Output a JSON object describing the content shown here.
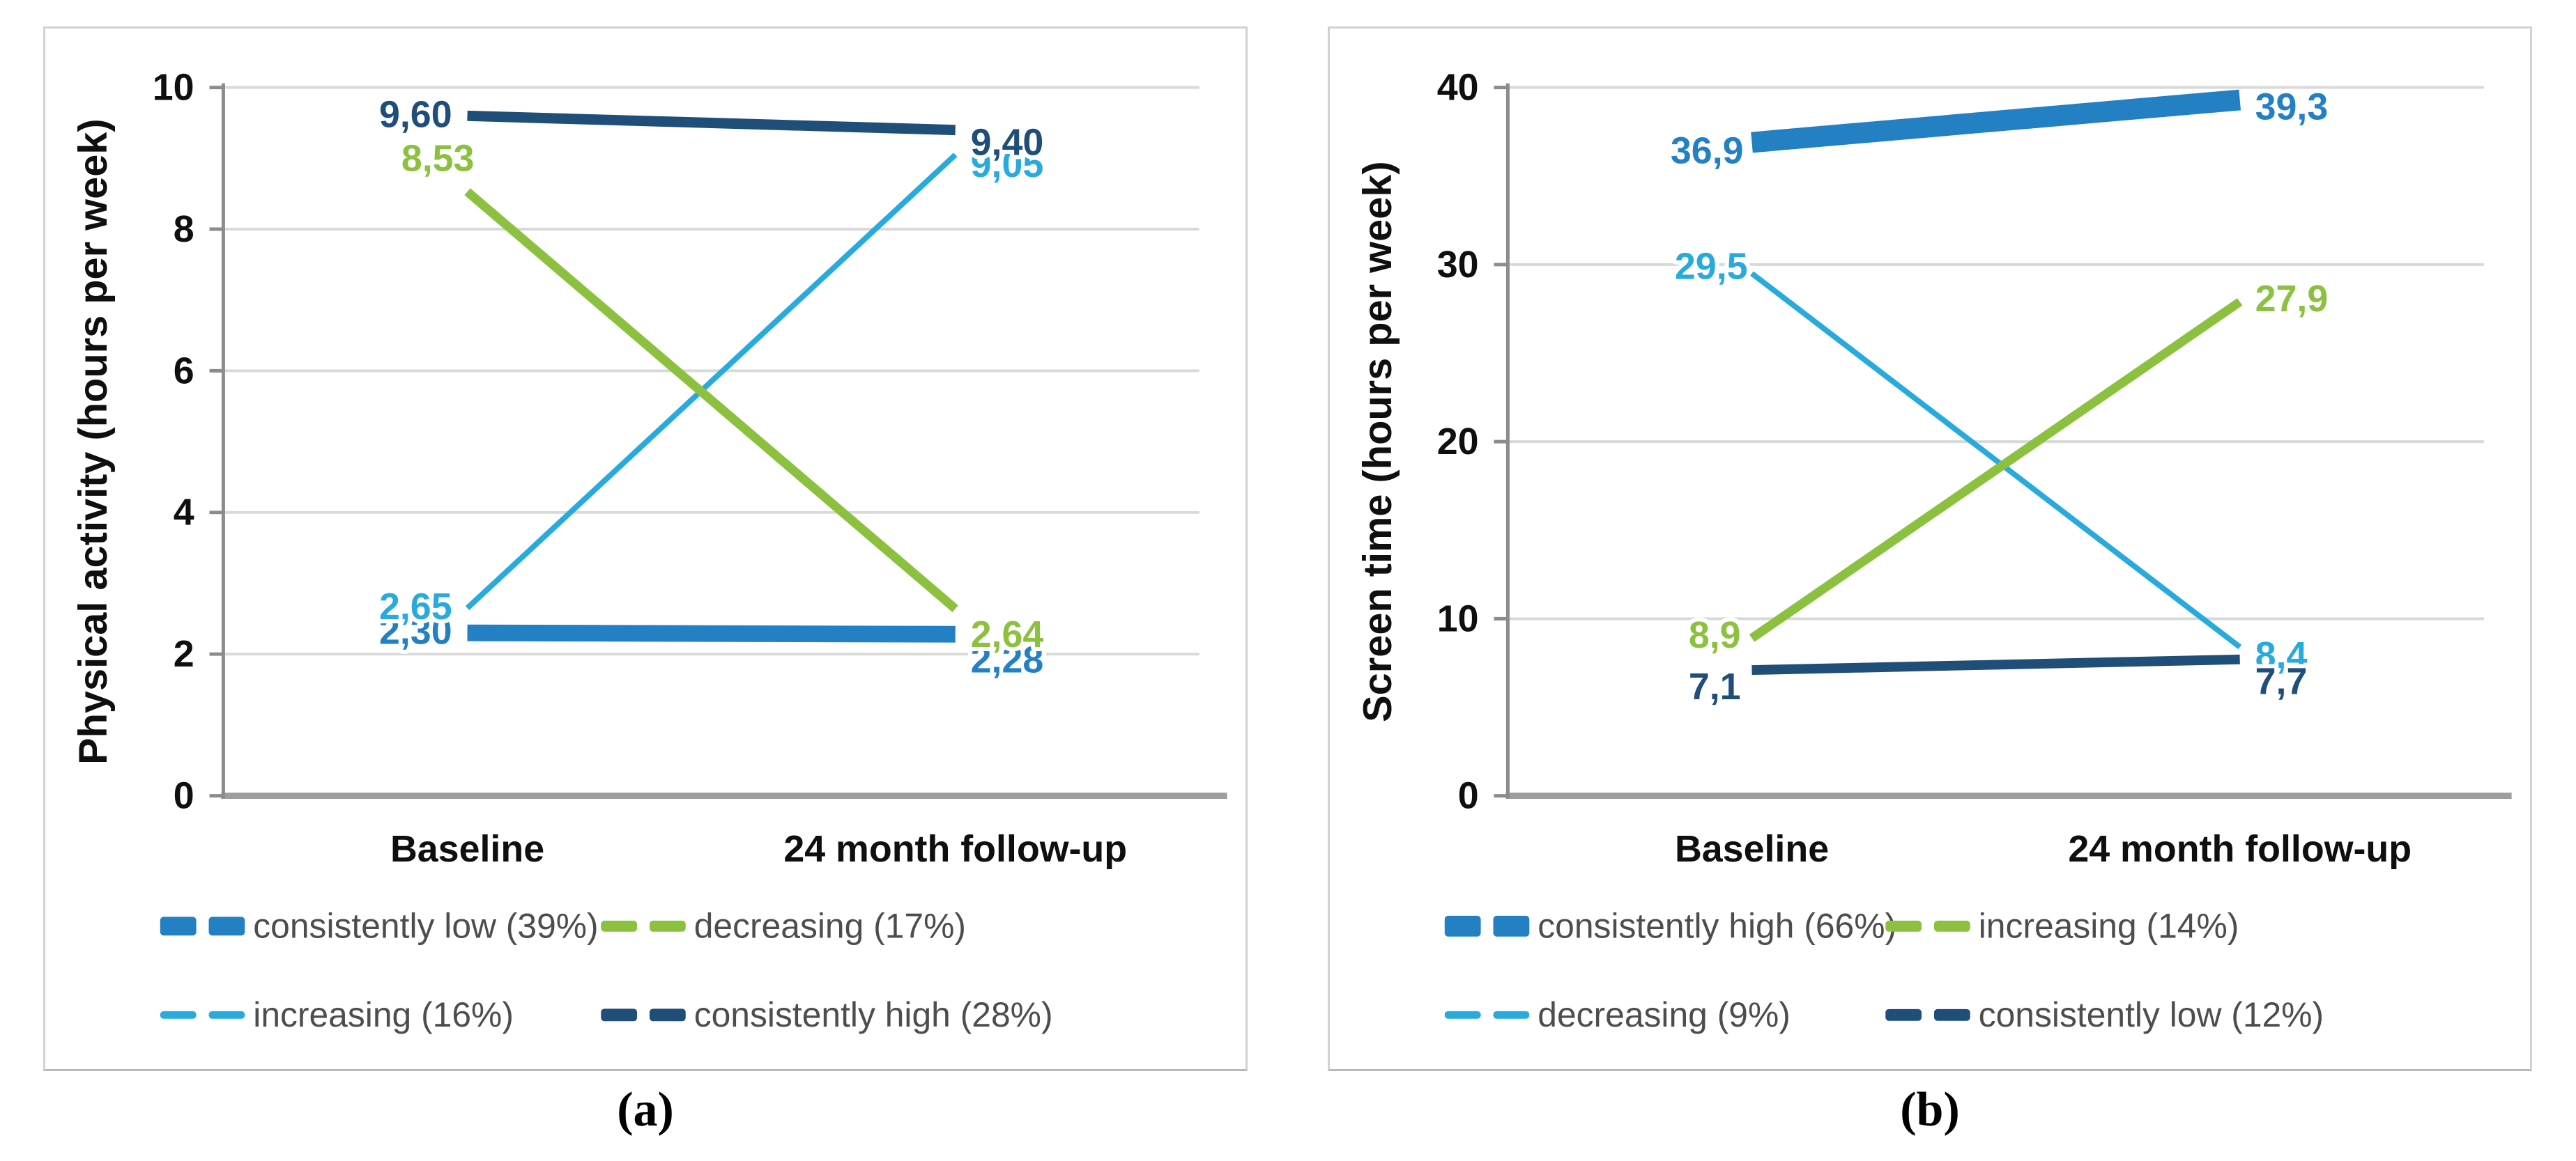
{
  "figure": {
    "panels": [
      {
        "caption": "(a)"
      },
      {
        "caption": "(b)"
      }
    ]
  },
  "colors": {
    "blue": "#2280c3",
    "green": "#8cc140",
    "cyan": "#28aadc",
    "navy": "#1f4e79",
    "gridline": "#d9d9d9",
    "axis": "#8c8c8c",
    "axis_bottom": "#9e9e9e",
    "tick_text": "#0f0f0f",
    "legend_text": "#4d4d4d",
    "panel_border": "#d2d2d2"
  },
  "chart_data": [
    {
      "type": "line",
      "title": "",
      "xlabel": "",
      "ylabel": "Physical activity (hours per week)",
      "ylim": [
        0,
        10
      ],
      "yticks": [
        0,
        2,
        4,
        6,
        8,
        10
      ],
      "categories": [
        "Baseline",
        "24 month follow-up"
      ],
      "grid": true,
      "legend_position": "bottom",
      "legend_columns": 2,
      "draw_order": [
        0,
        2,
        1,
        3
      ],
      "series": [
        {
          "name": "consistently low (39%)",
          "color_key": "blue",
          "stroke_width": 24,
          "values": [
            2.3,
            2.28
          ],
          "point_labels": [
            "2,30",
            "2,28"
          ],
          "label_pos": {
            "start": {
              "anchor": "end",
              "dx": -22,
              "dy": 16
            },
            "end": {
              "anchor": "start",
              "dx": 22,
              "dy": 55
            }
          }
        },
        {
          "name": "decreasing (17%)",
          "color_key": "green",
          "stroke_width": 13,
          "values": [
            8.53,
            2.64
          ],
          "point_labels": [
            "8,53",
            "2,64"
          ],
          "label_pos": {
            "start": {
              "anchor": "end",
              "dx": 10,
              "dy": -30
            },
            "end": {
              "anchor": "start",
              "dx": 22,
              "dy": 55
            }
          }
        },
        {
          "name": "increasing (16%)",
          "color_key": "cyan",
          "stroke_width": 8,
          "values": [
            2.65,
            9.05
          ],
          "point_labels": [
            "2,65",
            "9,05"
          ],
          "label_pos": {
            "start": {
              "anchor": "end",
              "dx": -22,
              "dy": 16
            },
            "end": {
              "anchor": "start",
              "dx": 22,
              "dy": 32
            }
          }
        },
        {
          "name": "consistently high (28%)",
          "color_key": "navy",
          "stroke_width": 15,
          "values": [
            9.6,
            9.4
          ],
          "point_labels": [
            "9,60",
            "9,40"
          ],
          "label_pos": {
            "start": {
              "anchor": "end",
              "dx": -22,
              "dy": 16
            },
            "end": {
              "anchor": "start",
              "dx": 22,
              "dy": 36
            }
          }
        }
      ]
    },
    {
      "type": "line",
      "title": "",
      "xlabel": "",
      "ylabel": "Screen time (hours per week)",
      "ylim": [
        0,
        40
      ],
      "yticks": [
        0,
        10,
        20,
        30,
        40
      ],
      "categories": [
        "Baseline",
        "24 month follow-up"
      ],
      "grid": true,
      "legend_position": "bottom",
      "legend_columns": 2,
      "draw_order": [
        2,
        1,
        3,
        0
      ],
      "series": [
        {
          "name": "consistently high (66%)",
          "color_key": "blue",
          "stroke_width": 30,
          "values": [
            36.9,
            39.3
          ],
          "point_labels": [
            "36,9",
            "39,3"
          ],
          "label_pos": {
            "start": {
              "anchor": "end",
              "dx": -12,
              "dy": 30
            },
            "end": {
              "anchor": "start",
              "dx": 22,
              "dy": 28
            }
          }
        },
        {
          "name": "increasing (14%)",
          "color_key": "green",
          "stroke_width": 13,
          "values": [
            8.9,
            27.9
          ],
          "point_labels": [
            "8,9",
            "27,9"
          ],
          "label_pos": {
            "start": {
              "anchor": "end",
              "dx": -16,
              "dy": 14
            },
            "end": {
              "anchor": "start",
              "dx": 22,
              "dy": 14
            }
          }
        },
        {
          "name": "decreasing (9%)",
          "color_key": "cyan",
          "stroke_width": 8,
          "values": [
            29.5,
            8.4
          ],
          "point_labels": [
            "29,5",
            "8,4"
          ],
          "label_pos": {
            "start": {
              "anchor": "end",
              "dx": -6,
              "dy": 8
            },
            "end": {
              "anchor": "start",
              "dx": 22,
              "dy": 30
            }
          }
        },
        {
          "name": "consistently low (12%)",
          "color_key": "navy",
          "stroke_width": 14,
          "values": [
            7.1,
            7.7
          ],
          "point_labels": [
            "7,1",
            "7,7"
          ],
          "label_pos": {
            "start": {
              "anchor": "end",
              "dx": -16,
              "dy": 42
            },
            "end": {
              "anchor": "start",
              "dx": 22,
              "dy": 50
            }
          }
        }
      ]
    }
  ]
}
